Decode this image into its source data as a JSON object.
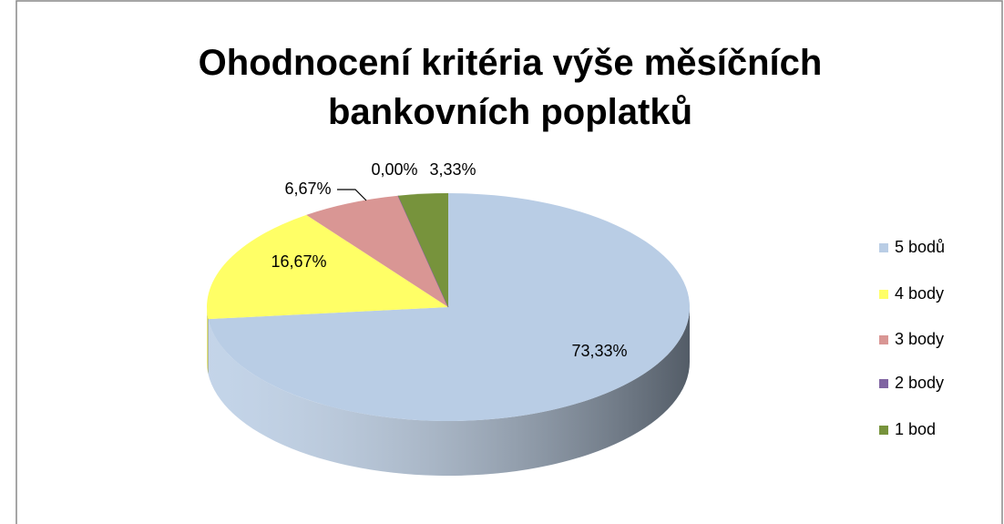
{
  "chart_data": {
    "type": "pie",
    "title": "Ohodnocení kritéria výše měsíčních bankovních poplatků",
    "categories": [
      "5 bodů",
      "4 body",
      "3 body",
      "2 body",
      "1 bod"
    ],
    "values": [
      73.33,
      16.67,
      6.67,
      0,
      3.33
    ],
    "value_labels": [
      "73,33%",
      "16,67%",
      "6,67%",
      "0,00%",
      "3,33%"
    ],
    "colors": [
      "#b9cde5",
      "#ffff66",
      "#d99694",
      "#8064a2",
      "#77933c"
    ],
    "legend": "right"
  }
}
